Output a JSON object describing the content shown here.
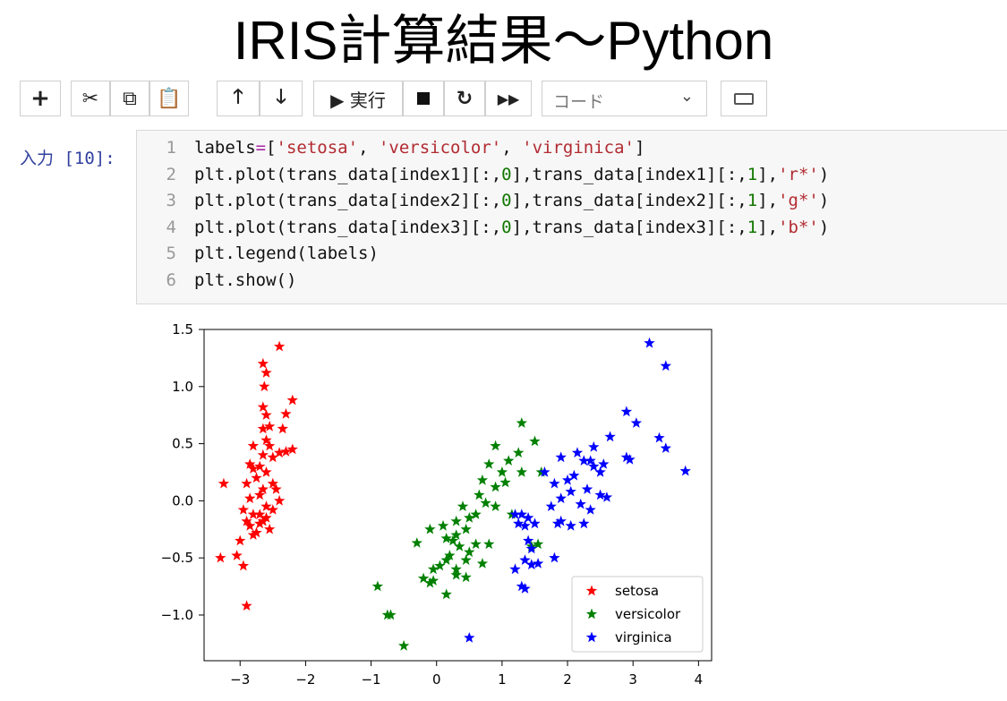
{
  "slide_title": "IRIS計算結果～Python",
  "toolbar": {
    "run_label": "▶ 実行",
    "cell_type": "コード",
    "icons": [
      "plus-icon",
      "scissors-icon",
      "copy-icon",
      "paste-icon",
      "arrow-up-icon",
      "arrow-down-icon",
      "play-icon",
      "stop-icon",
      "restart-icon",
      "fast-forward-icon",
      "chevron-down-icon",
      "keyboard-icon"
    ]
  },
  "cell": {
    "prompt": "入力 [10]:",
    "lines": [
      {
        "n": "1",
        "parts": [
          [
            "labels",
            ""
          ],
          [
            "=",
            "op"
          ],
          [
            "[",
            ""
          ],
          [
            "'setosa'",
            "str"
          ],
          [
            ", ",
            ""
          ],
          [
            "'versicolor'",
            "str"
          ],
          [
            ", ",
            ""
          ],
          [
            "'virginica'",
            "str"
          ],
          [
            "]",
            ""
          ]
        ]
      },
      {
        "n": "2",
        "parts": [
          [
            "plt.plot(trans_data[index1][:,",
            ""
          ],
          [
            "0",
            "num"
          ],
          [
            "],trans_data[index1][:,",
            ""
          ],
          [
            "1",
            "num"
          ],
          [
            "],",
            ""
          ],
          [
            "'r*'",
            "str"
          ],
          [
            ")",
            ""
          ]
        ]
      },
      {
        "n": "3",
        "parts": [
          [
            "plt.plot(trans_data[index2][:,",
            ""
          ],
          [
            "0",
            "num"
          ],
          [
            "],trans_data[index2][:,",
            ""
          ],
          [
            "1",
            "num"
          ],
          [
            "],",
            ""
          ],
          [
            "'g*'",
            "str"
          ],
          [
            ")",
            ""
          ]
        ]
      },
      {
        "n": "4",
        "parts": [
          [
            "plt.plot(trans_data[index3][:,",
            ""
          ],
          [
            "0",
            "num"
          ],
          [
            "],trans_data[index3][:,",
            ""
          ],
          [
            "1",
            "num"
          ],
          [
            "],",
            ""
          ],
          [
            "'b*'",
            "str"
          ],
          [
            ")",
            ""
          ]
        ]
      },
      {
        "n": "5",
        "parts": [
          [
            "plt.legend(labels)",
            ""
          ]
        ]
      },
      {
        "n": "6",
        "parts": [
          [
            "plt.show()",
            ""
          ]
        ]
      }
    ]
  },
  "chart_data": {
    "type": "scatter",
    "title": "",
    "xlabel": "",
    "ylabel": "",
    "xlim": [
      -3.55,
      4.2
    ],
    "ylim": [
      -1.4,
      1.5
    ],
    "xticks": [
      -3,
      -2,
      -1,
      0,
      1,
      2,
      3,
      4
    ],
    "yticks": [
      1.5,
      1.0,
      0.5,
      0.0,
      -0.5,
      -1.0
    ],
    "ytick_labels": [
      "1.5",
      "1.0",
      "0.5",
      "0.0",
      "−0.5",
      "−1.0"
    ],
    "xtick_labels": [
      "−3",
      "−2",
      "−1",
      "0",
      "1",
      "2",
      "3",
      "4"
    ],
    "marker": "star",
    "legend_position": "lower right",
    "series": [
      {
        "name": "setosa",
        "color": "#ff0000",
        "points": [
          [
            -2.4,
            1.35
          ],
          [
            -2.65,
            1.2
          ],
          [
            -2.6,
            1.12
          ],
          [
            -2.2,
            0.88
          ],
          [
            -2.63,
            1.0
          ],
          [
            -2.65,
            0.82
          ],
          [
            -2.6,
            0.75
          ],
          [
            -2.3,
            0.76
          ],
          [
            -2.65,
            0.63
          ],
          [
            -2.55,
            0.65
          ],
          [
            -2.35,
            0.63
          ],
          [
            -2.6,
            0.53
          ],
          [
            -2.8,
            0.48
          ],
          [
            -2.55,
            0.48
          ],
          [
            -2.65,
            0.4
          ],
          [
            -2.4,
            0.42
          ],
          [
            -2.3,
            0.43
          ],
          [
            -2.2,
            0.45
          ],
          [
            -2.5,
            0.38
          ],
          [
            -2.7,
            0.3
          ],
          [
            -2.8,
            0.28
          ],
          [
            -2.85,
            0.32
          ],
          [
            -2.6,
            0.25
          ],
          [
            -2.75,
            0.2
          ],
          [
            -2.9,
            0.15
          ],
          [
            -2.5,
            0.15
          ],
          [
            -2.65,
            0.1
          ],
          [
            -2.45,
            0.1
          ],
          [
            -2.7,
            0.05
          ],
          [
            -2.85,
            0.02
          ],
          [
            -2.95,
            -0.08
          ],
          [
            -2.6,
            -0.05
          ],
          [
            -2.4,
            0.0
          ],
          [
            -2.8,
            -0.12
          ],
          [
            -2.6,
            -0.15
          ],
          [
            -2.7,
            -0.2
          ],
          [
            -2.9,
            -0.18
          ],
          [
            -2.75,
            -0.28
          ],
          [
            -2.55,
            -0.25
          ],
          [
            -2.85,
            -0.22
          ],
          [
            -3.25,
            0.15
          ],
          [
            -3.0,
            -0.35
          ],
          [
            -3.3,
            -0.5
          ],
          [
            -3.05,
            -0.48
          ],
          [
            -2.95,
            -0.57
          ],
          [
            -2.8,
            -0.3
          ],
          [
            -2.65,
            -0.18
          ],
          [
            -2.9,
            -0.92
          ],
          [
            -2.7,
            -0.12
          ],
          [
            -2.5,
            -0.08
          ]
        ]
      },
      {
        "name": "versicolor",
        "color": "#008000",
        "points": [
          [
            1.3,
            0.68
          ],
          [
            1.5,
            0.52
          ],
          [
            0.9,
            0.48
          ],
          [
            1.25,
            0.42
          ],
          [
            1.1,
            0.35
          ],
          [
            0.8,
            0.32
          ],
          [
            1.6,
            0.25
          ],
          [
            1.3,
            0.25
          ],
          [
            1.0,
            0.25
          ],
          [
            0.7,
            0.18
          ],
          [
            1.05,
            0.16
          ],
          [
            0.9,
            0.12
          ],
          [
            0.65,
            0.05
          ],
          [
            0.75,
            -0.02
          ],
          [
            0.4,
            -0.05
          ],
          [
            0.9,
            -0.05
          ],
          [
            1.15,
            -0.12
          ],
          [
            0.6,
            -0.12
          ],
          [
            0.5,
            -0.15
          ],
          [
            0.3,
            -0.18
          ],
          [
            0.1,
            -0.22
          ],
          [
            -0.1,
            -0.25
          ],
          [
            0.45,
            -0.25
          ],
          [
            0.3,
            -0.3
          ],
          [
            0.15,
            -0.33
          ],
          [
            0.25,
            -0.35
          ],
          [
            0.6,
            -0.38
          ],
          [
            0.8,
            -0.38
          ],
          [
            -0.3,
            -0.37
          ],
          [
            0.35,
            -0.4
          ],
          [
            0.5,
            -0.45
          ],
          [
            0.15,
            -0.52
          ],
          [
            0.2,
            -0.48
          ],
          [
            0.45,
            -0.52
          ],
          [
            0.05,
            -0.57
          ],
          [
            0.7,
            -0.55
          ],
          [
            0.3,
            -0.6
          ],
          [
            -0.05,
            -0.6
          ],
          [
            -0.2,
            -0.68
          ],
          [
            0.3,
            -0.65
          ],
          [
            -0.1,
            -0.72
          ],
          [
            -0.05,
            -0.7
          ],
          [
            0.45,
            -0.67
          ],
          [
            0.15,
            -0.82
          ],
          [
            -0.9,
            -0.75
          ],
          [
            -0.75,
            -1.0
          ],
          [
            -0.7,
            -1.0
          ],
          [
            -0.5,
            -1.27
          ],
          [
            1.45,
            -0.4
          ],
          [
            1.55,
            -0.38
          ]
        ]
      },
      {
        "name": "virginica",
        "color": "#0000ff",
        "points": [
          [
            3.25,
            1.38
          ],
          [
            3.5,
            1.18
          ],
          [
            2.9,
            0.78
          ],
          [
            3.05,
            0.68
          ],
          [
            2.65,
            0.56
          ],
          [
            3.4,
            0.55
          ],
          [
            3.5,
            0.46
          ],
          [
            2.15,
            0.42
          ],
          [
            2.4,
            0.47
          ],
          [
            1.9,
            0.38
          ],
          [
            2.25,
            0.35
          ],
          [
            2.35,
            0.35
          ],
          [
            2.55,
            0.32
          ],
          [
            2.4,
            0.3
          ],
          [
            2.9,
            0.38
          ],
          [
            2.95,
            0.36
          ],
          [
            3.8,
            0.26
          ],
          [
            2.5,
            0.25
          ],
          [
            2.1,
            0.22
          ],
          [
            1.65,
            0.25
          ],
          [
            2.0,
            0.18
          ],
          [
            1.8,
            0.15
          ],
          [
            2.3,
            0.1
          ],
          [
            2.5,
            0.05
          ],
          [
            2.05,
            0.08
          ],
          [
            2.6,
            0.03
          ],
          [
            1.9,
            0.02
          ],
          [
            1.75,
            -0.05
          ],
          [
            2.2,
            -0.03
          ],
          [
            1.2,
            -0.12
          ],
          [
            1.3,
            -0.12
          ],
          [
            1.4,
            -0.15
          ],
          [
            1.25,
            -0.2
          ],
          [
            1.5,
            -0.2
          ],
          [
            1.35,
            -0.22
          ],
          [
            2.35,
            -0.08
          ],
          [
            1.85,
            -0.2
          ],
          [
            2.25,
            -0.2
          ],
          [
            2.05,
            -0.22
          ],
          [
            1.9,
            -0.18
          ],
          [
            1.45,
            -0.42
          ],
          [
            1.35,
            -0.52
          ],
          [
            1.8,
            -0.5
          ],
          [
            1.55,
            -0.55
          ],
          [
            1.45,
            -0.56
          ],
          [
            1.2,
            -0.6
          ],
          [
            1.3,
            -0.75
          ],
          [
            1.35,
            -0.77
          ],
          [
            0.5,
            -1.2
          ],
          [
            1.4,
            -0.35
          ]
        ]
      }
    ]
  }
}
